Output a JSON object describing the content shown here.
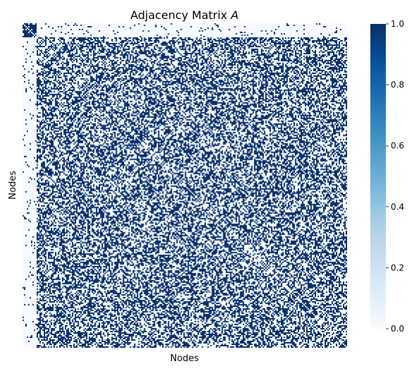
{
  "chart_data": {
    "type": "heatmap",
    "title_main": "Adjacency Matrix",
    "title_symbol": "A",
    "xlabel": "Nodes",
    "ylabel": "Nodes",
    "value_range": [
      0,
      1
    ],
    "colormap": "Blues",
    "colorbar": {
      "ticks": [
        "0.0",
        "0.2",
        "0.4",
        "0.6",
        "0.8",
        "1.0"
      ],
      "tick_values": [
        0.0,
        0.2,
        0.4,
        0.6,
        0.8,
        1.0
      ]
    },
    "blocks": {
      "small_community_density": 0.85,
      "cross_community_density": 0.05,
      "large_community_density": 0.5
    },
    "colors": {
      "low": "#f7fbff",
      "high": "#08306b"
    }
  }
}
